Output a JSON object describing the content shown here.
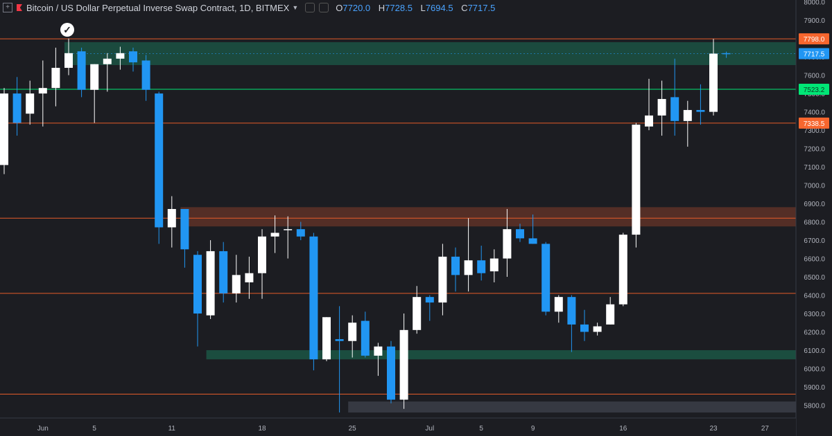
{
  "header": {
    "expand_glyph": "+",
    "title": "Bitcoin / US Dollar Perpetual Inverse Swap Contract, 1D, BITMEX",
    "dropdown_icon": "caret-down-icon",
    "ohlc": {
      "o_label": "O",
      "o_value": "7720.0",
      "h_label": "H",
      "h_value": "7728.5",
      "l_label": "L",
      "l_value": "7694.5",
      "c_label": "C",
      "c_value": "7717.5"
    }
  },
  "colors": {
    "background": "#1c1d22",
    "up_candle": "#ffffff",
    "down_candle": "#2196f3",
    "resistance_line": "#e65c2a",
    "support_line": "#00e676",
    "axis_text": "#b2b5be",
    "price_tag_orange": "#f7662e",
    "price_tag_blue": "#2196f3",
    "price_tag_green": "#00e676"
  },
  "chart_data": {
    "type": "candlestick",
    "title": "Bitcoin / US Dollar Perpetual Inverse Swap Contract, 1D, BITMEX",
    "interval": "1D",
    "ylim": [
      5730,
      8010
    ],
    "y_ticks": [
      5800,
      5900,
      6000,
      6100,
      6200,
      6300,
      6400,
      6500,
      6600,
      6700,
      6800,
      6900,
      7000,
      7100,
      7200,
      7300,
      7400,
      7500,
      7600,
      7700,
      7800,
      7900,
      8000
    ],
    "x_labels": [
      {
        "index": 3,
        "label": "Jun"
      },
      {
        "index": 7,
        "label": "5"
      },
      {
        "index": 13,
        "label": "11"
      },
      {
        "index": 20,
        "label": "18"
      },
      {
        "index": 27,
        "label": "25"
      },
      {
        "index": 33,
        "label": "Jul"
      },
      {
        "index": 37,
        "label": "5"
      },
      {
        "index": 41,
        "label": "9"
      },
      {
        "index": 48,
        "label": "16"
      },
      {
        "index": 55,
        "label": "23"
      },
      {
        "index": 59,
        "label": "27"
      }
    ],
    "candles": [
      {
        "o": 7110,
        "h": 7530,
        "l": 7060,
        "c": 7500
      },
      {
        "o": 7500,
        "h": 7590,
        "l": 7270,
        "c": 7340
      },
      {
        "o": 7390,
        "h": 7570,
        "l": 7330,
        "c": 7500
      },
      {
        "o": 7500,
        "h": 7680,
        "l": 7320,
        "c": 7530
      },
      {
        "o": 7530,
        "h": 7750,
        "l": 7430,
        "c": 7640
      },
      {
        "o": 7640,
        "h": 7800,
        "l": 7600,
        "c": 7720
      },
      {
        "o": 7730,
        "h": 7750,
        "l": 7480,
        "c": 7520
      },
      {
        "o": 7520,
        "h": 7660,
        "l": 7340,
        "c": 7660
      },
      {
        "o": 7660,
        "h": 7720,
        "l": 7510,
        "c": 7690
      },
      {
        "o": 7690,
        "h": 7755,
        "l": 7630,
        "c": 7720
      },
      {
        "o": 7730,
        "h": 7750,
        "l": 7620,
        "c": 7670
      },
      {
        "o": 7680,
        "h": 7710,
        "l": 7460,
        "c": 7520
      },
      {
        "o": 7500,
        "h": 7510,
        "l": 6680,
        "c": 6770
      },
      {
        "o": 6770,
        "h": 6940,
        "l": 6660,
        "c": 6870
      },
      {
        "o": 6870,
        "h": 6870,
        "l": 6550,
        "c": 6650
      },
      {
        "o": 6620,
        "h": 6640,
        "l": 6120,
        "c": 6300
      },
      {
        "o": 6290,
        "h": 6700,
        "l": 6270,
        "c": 6640
      },
      {
        "o": 6640,
        "h": 6690,
        "l": 6360,
        "c": 6410
      },
      {
        "o": 6410,
        "h": 6620,
        "l": 6360,
        "c": 6510
      },
      {
        "o": 6470,
        "h": 6610,
        "l": 6380,
        "c": 6520
      },
      {
        "o": 6520,
        "h": 6760,
        "l": 6380,
        "c": 6720
      },
      {
        "o": 6720,
        "h": 6835,
        "l": 6630,
        "c": 6740
      },
      {
        "o": 6760,
        "h": 6830,
        "l": 6600,
        "c": 6760
      },
      {
        "o": 6760,
        "h": 6800,
        "l": 6700,
        "c": 6720
      },
      {
        "o": 6720,
        "h": 6740,
        "l": 5990,
        "c": 6050
      },
      {
        "o": 6050,
        "h": 6280,
        "l": 6040,
        "c": 6280
      },
      {
        "o": 6160,
        "h": 6340,
        "l": 5760,
        "c": 6150
      },
      {
        "o": 6150,
        "h": 6290,
        "l": 6060,
        "c": 6250
      },
      {
        "o": 6260,
        "h": 6310,
        "l": 6060,
        "c": 6070
      },
      {
        "o": 6070,
        "h": 6140,
        "l": 5960,
        "c": 6120
      },
      {
        "o": 6120,
        "h": 6150,
        "l": 5810,
        "c": 5830
      },
      {
        "o": 5830,
        "h": 6300,
        "l": 5780,
        "c": 6210
      },
      {
        "o": 6210,
        "h": 6450,
        "l": 6190,
        "c": 6390
      },
      {
        "o": 6390,
        "h": 6400,
        "l": 6260,
        "c": 6360
      },
      {
        "o": 6360,
        "h": 6680,
        "l": 6290,
        "c": 6610
      },
      {
        "o": 6610,
        "h": 6660,
        "l": 6420,
        "c": 6510
      },
      {
        "o": 6510,
        "h": 6820,
        "l": 6420,
        "c": 6590
      },
      {
        "o": 6590,
        "h": 6670,
        "l": 6480,
        "c": 6520
      },
      {
        "o": 6530,
        "h": 6650,
        "l": 6470,
        "c": 6600
      },
      {
        "o": 6600,
        "h": 6870,
        "l": 6500,
        "c": 6760
      },
      {
        "o": 6760,
        "h": 6790,
        "l": 6690,
        "c": 6710
      },
      {
        "o": 6710,
        "h": 6840,
        "l": 6680,
        "c": 6680
      },
      {
        "o": 6680,
        "h": 6690,
        "l": 6290,
        "c": 6310
      },
      {
        "o": 6310,
        "h": 6400,
        "l": 6250,
        "c": 6390
      },
      {
        "o": 6390,
        "h": 6400,
        "l": 6090,
        "c": 6240
      },
      {
        "o": 6240,
        "h": 6320,
        "l": 6150,
        "c": 6200
      },
      {
        "o": 6200,
        "h": 6250,
        "l": 6180,
        "c": 6230
      },
      {
        "o": 6240,
        "h": 6390,
        "l": 6240,
        "c": 6350
      },
      {
        "o": 6350,
        "h": 6740,
        "l": 6340,
        "c": 6730
      },
      {
        "o": 6730,
        "h": 7340,
        "l": 6660,
        "c": 7330
      },
      {
        "o": 7320,
        "h": 7580,
        "l": 7300,
        "c": 7380
      },
      {
        "o": 7380,
        "h": 7570,
        "l": 7270,
        "c": 7470
      },
      {
        "o": 7480,
        "h": 7690,
        "l": 7270,
        "c": 7350
      },
      {
        "o": 7350,
        "h": 7460,
        "l": 7210,
        "c": 7410
      },
      {
        "o": 7410,
        "h": 7550,
        "l": 7330,
        "c": 7400
      },
      {
        "o": 7400,
        "h": 7798,
        "l": 7380,
        "c": 7717.5
      },
      {
        "o": 7720,
        "h": 7728.5,
        "l": 7694.5,
        "c": 7717.5
      }
    ],
    "horizontal_lines": [
      {
        "price": 7798.0,
        "color": "#e65c2a",
        "tag": "7798.0"
      },
      {
        "price": 7523.2,
        "color": "#00e676",
        "tag": "7523.2"
      },
      {
        "price": 7338.5,
        "color": "#e65c2a",
        "tag": "7338.5"
      },
      {
        "price": 6820,
        "color": "#e65c2a",
        "tag": ""
      },
      {
        "price": 6410,
        "color": "#e65c2a",
        "tag": ""
      },
      {
        "price": 5860,
        "color": "#e65c2a",
        "tag": ""
      }
    ],
    "last_price": {
      "price": 7717.5,
      "tag": "7717.5"
    },
    "zones": [
      {
        "from_index": 5,
        "to_index": 62,
        "low": 7655,
        "high": 7780,
        "color": "#1b5e4a",
        "opacity": 0.7
      },
      {
        "from_index": 14,
        "to_index": 62,
        "low": 6775,
        "high": 6880,
        "color": "#7a3a2a",
        "opacity": 0.6
      },
      {
        "from_index": 16,
        "to_index": 62,
        "low": 6050,
        "high": 6100,
        "color": "#1b5e4a",
        "opacity": 0.75
      },
      {
        "from_index": 27,
        "to_index": 62,
        "low": 5760,
        "high": 5820,
        "color": "#3a3d46",
        "opacity": 0.9
      }
    ]
  }
}
